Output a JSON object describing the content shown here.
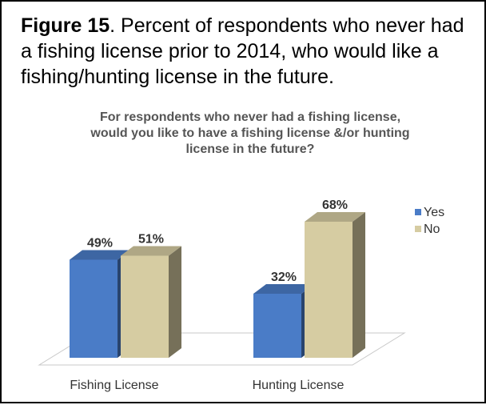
{
  "caption": {
    "label": "Figure 15",
    "text": ". Percent of respondents who never had a fishing license prior to 2014, who would like a fishing/hunting license in the future."
  },
  "chart_data": {
    "type": "bar",
    "title_lines": [
      "For respondents who never had a fishing license,",
      "would you like to have a fishing license &/or hunting",
      "license in the future?"
    ],
    "categories": [
      "Fishing License",
      "Hunting License"
    ],
    "series": [
      {
        "name": "Yes",
        "values": [
          49,
          32
        ],
        "labels": [
          "49%",
          "32%"
        ],
        "color": "#4a7cc7"
      },
      {
        "name": "No",
        "values": [
          51,
          68
        ],
        "labels": [
          "51%",
          "68%"
        ],
        "color": "#d6cca2"
      }
    ],
    "ylim": [
      0,
      100
    ],
    "grid": false,
    "legend_position": "right"
  }
}
